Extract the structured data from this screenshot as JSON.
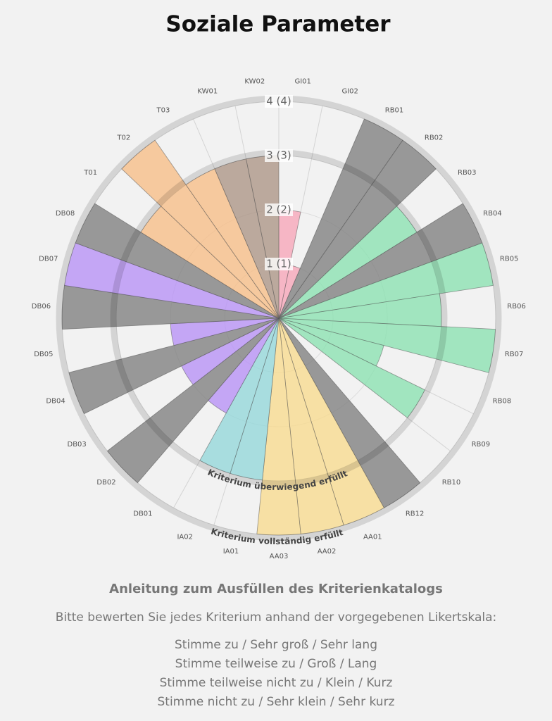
{
  "chart_data": {
    "type": "polar-bar",
    "title": "Soziale Parameter",
    "categories": [
      "GI01",
      "GI02",
      "RB01",
      "RB02",
      "RB03",
      "RB04",
      "RB05",
      "RB06",
      "RB07",
      "RB08",
      "RB09",
      "RB10",
      "RB12",
      "AA01",
      "AA02",
      "AA03",
      "IA01",
      "IA02",
      "DB01",
      "DB02",
      "DB03",
      "DB04",
      "DB05",
      "DB06",
      "DB07",
      "DB08",
      "T01",
      "T02",
      "T03",
      "KW01",
      "KW02"
    ],
    "values": [
      2,
      1,
      4,
      4,
      3,
      4,
      4,
      3,
      4,
      2,
      3,
      0,
      4,
      4,
      4,
      4,
      3,
      3,
      2,
      4,
      2,
      4,
      2,
      4,
      4,
      4,
      3,
      4,
      3,
      3,
      3
    ],
    "colors": [
      "#f7a1b5",
      "#f7a1b5",
      "#7a7a7a",
      "#7a7a7a",
      "#86e0ad",
      "#7a7a7a",
      "#86e0ad",
      "#86e0ad",
      "#86e0ad",
      "#86e0ad",
      "#86e0ad",
      "#86e0ad",
      "#7a7a7a",
      "#f8d98a",
      "#f8d98a",
      "#f8d98a",
      "#8fd6d8",
      "#8fd6d8",
      "#b48cf6",
      "#7a7a7a",
      "#b48cf6",
      "#7a7a7a",
      "#b48cf6",
      "#7a7a7a",
      "#b48cf6",
      "#7a7a7a",
      "#f7bb82",
      "#f7bb82",
      "#f7bb82",
      "#a89080",
      "#a89080"
    ],
    "ylim": [
      0,
      4
    ],
    "yticks": [
      {
        "value": 1,
        "label": "1 (1)"
      },
      {
        "value": 2,
        "label": "2 (2)"
      },
      {
        "value": 3,
        "label": "3 (3)"
      },
      {
        "value": 4,
        "label": "4 (4)"
      }
    ],
    "annotations": [
      {
        "value": 3,
        "text": "Kriterium überwiegend erfüllt"
      },
      {
        "value": 4,
        "text": "Kriterium vollständig erfüllt"
      }
    ]
  },
  "instructions": {
    "heading": "Anleitung zum Ausfüllen des Kriterienkatalogs",
    "intro": "Bitte bewerten Sie jedes Kriterium anhand der vorgegebenen Likertskala:",
    "scale": [
      "Stimme zu / Sehr groß / Sehr lang",
      "Stimme teilweise zu / Groß / Lang",
      "Stimme teilweise nicht zu / Klein / Kurz",
      "Stimme nicht zu / Sehr klein / Sehr kurz"
    ]
  }
}
